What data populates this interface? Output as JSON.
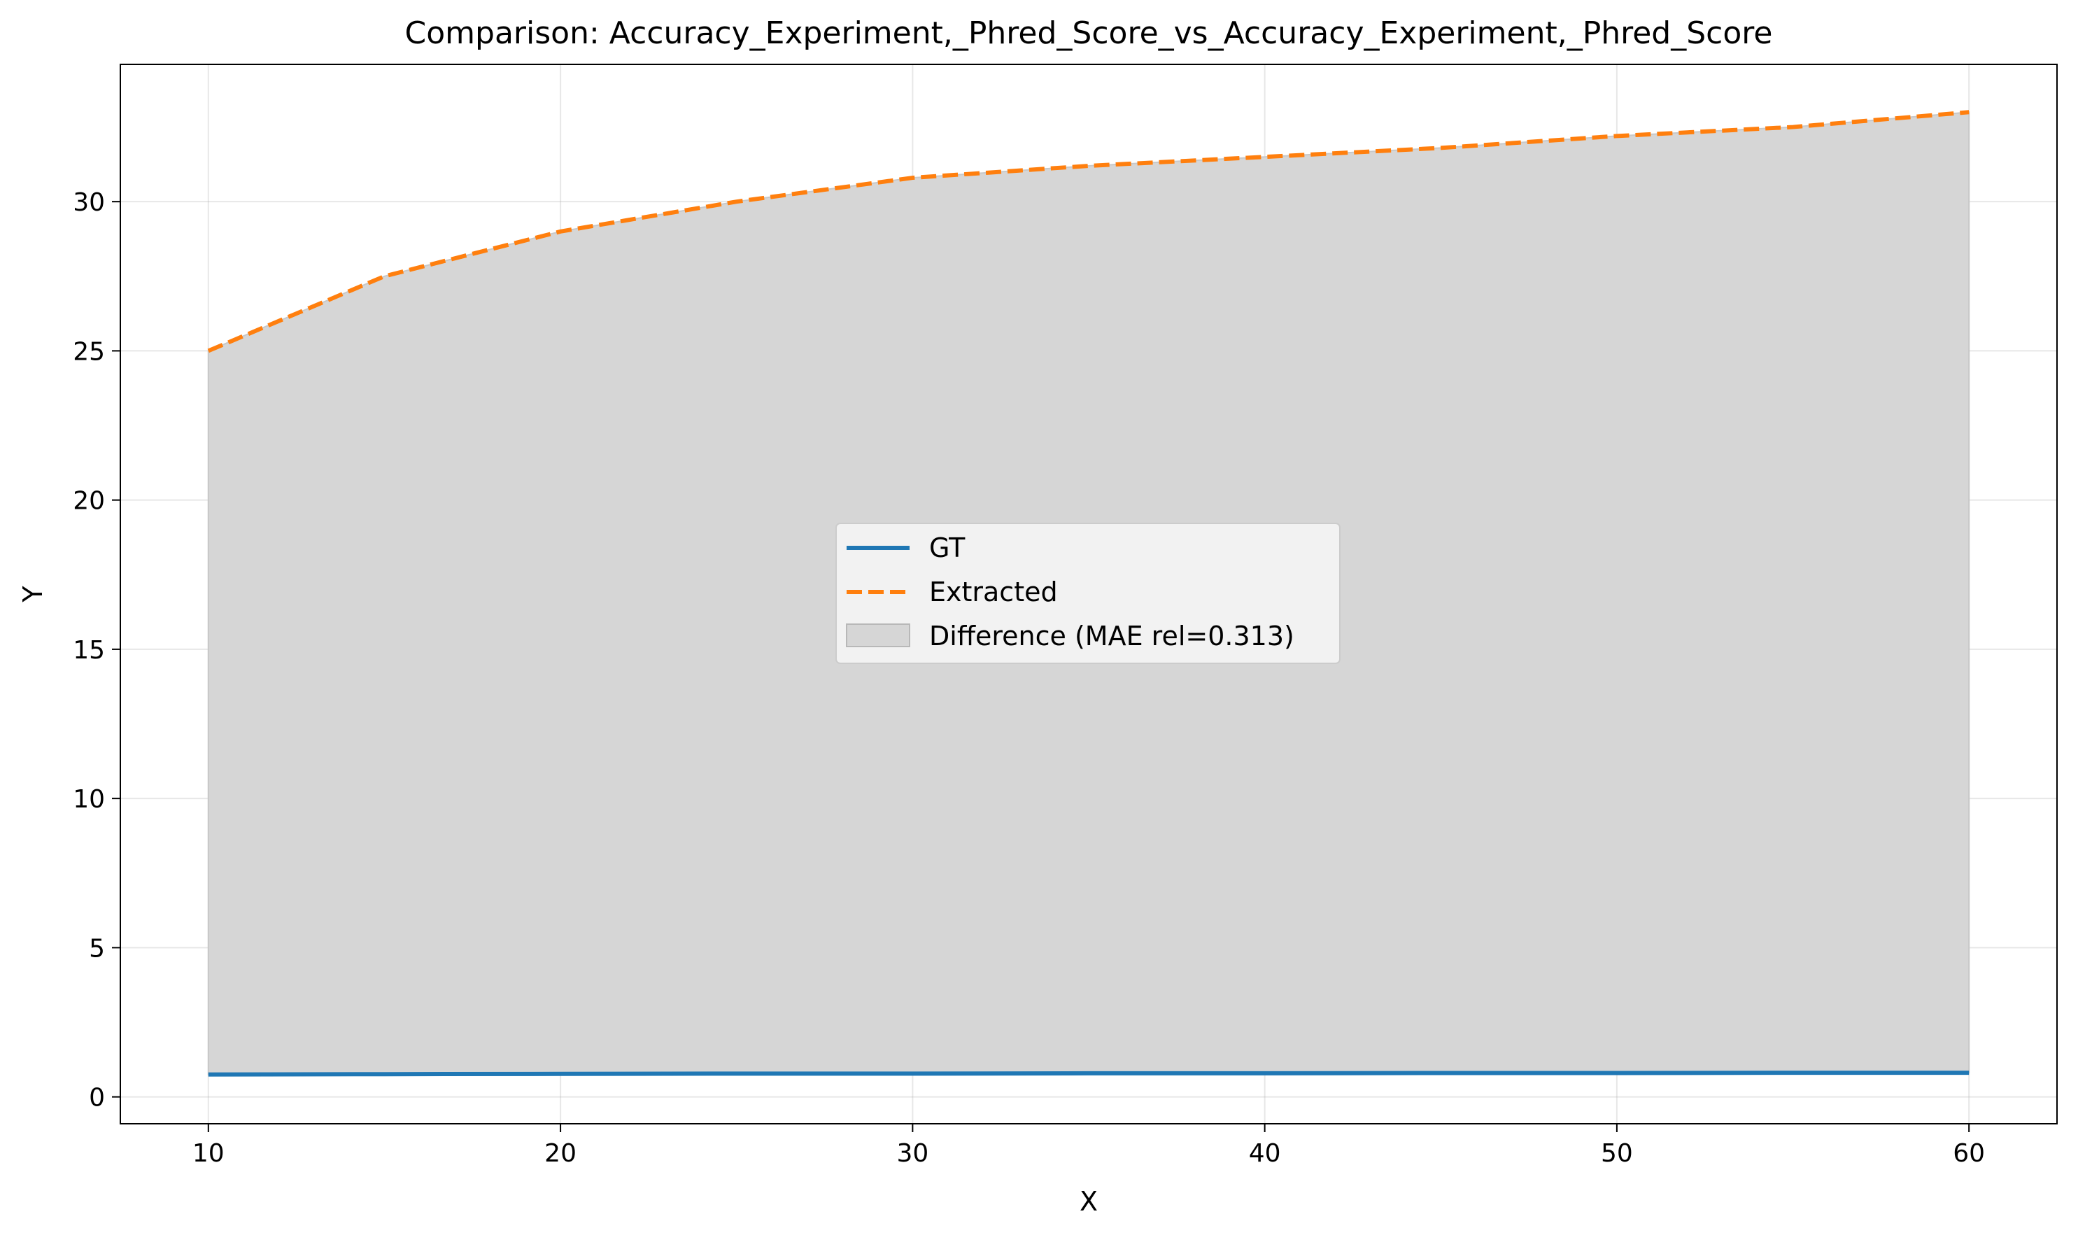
{
  "chart_data": {
    "type": "line",
    "title": "Comparison: Accuracy_Experiment,_Phred_Score_vs_Accuracy_Experiment,_Phred_Score",
    "xlabel": "X",
    "ylabel": "Y",
    "xlim": [
      7.5,
      62.5
    ],
    "ylim": [
      -0.9,
      34.6
    ],
    "xticks": [
      10,
      20,
      30,
      40,
      50,
      60
    ],
    "yticks": [
      0,
      5,
      10,
      15,
      20,
      25,
      30
    ],
    "grid": true,
    "legend_position": "center",
    "x": [
      10,
      15,
      20,
      25,
      30,
      35,
      40,
      45,
      50,
      55,
      60
    ],
    "series": [
      {
        "name": "GT",
        "color": "#1f77b4",
        "style": "solid",
        "values": [
          0.75,
          0.76,
          0.77,
          0.78,
          0.78,
          0.79,
          0.79,
          0.8,
          0.8,
          0.81,
          0.81
        ]
      },
      {
        "name": "Extracted",
        "color": "#ff7f0e",
        "style": "dashed",
        "values": [
          25.0,
          27.5,
          29.0,
          30.0,
          30.8,
          31.2,
          31.5,
          31.8,
          32.2,
          32.5,
          33.0
        ]
      }
    ],
    "fill": {
      "name": "Difference (MAE rel=0.313)",
      "color": "#d6d6d6",
      "between": [
        "GT",
        "Extracted"
      ]
    }
  }
}
